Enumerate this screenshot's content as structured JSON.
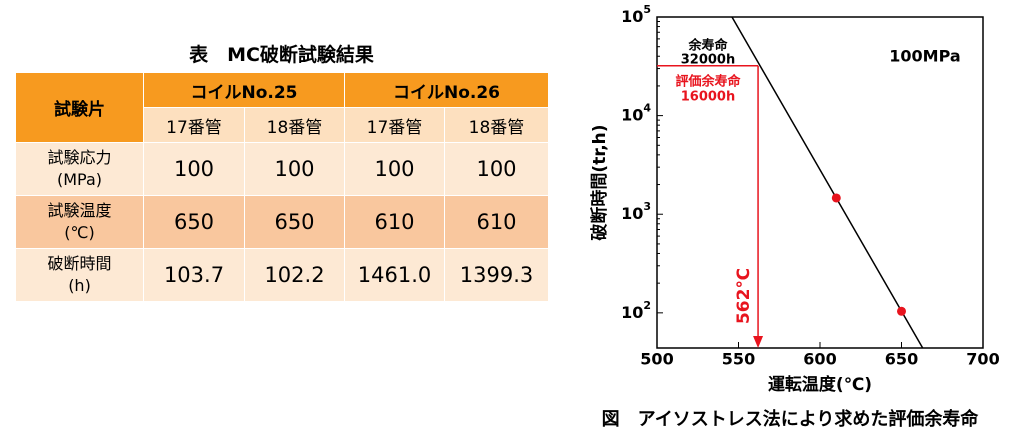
{
  "table": {
    "title": "表　MC破断試験結果",
    "header": [
      "試験片",
      "コイルNo.25",
      "コイルNo.26"
    ],
    "subheader": [
      "17番管",
      "18番管",
      "17番管",
      "18番管"
    ],
    "rows": [
      {
        "label": [
          "試験応力",
          "(MPa)"
        ],
        "cells": [
          "100",
          "100",
          "100",
          "100"
        ]
      },
      {
        "label": [
          "試験温度",
          "(℃)"
        ],
        "cells": [
          "650",
          "650",
          "610",
          "610"
        ]
      },
      {
        "label": [
          "破断時間",
          "(h)"
        ],
        "cells": [
          "103.7",
          "102.2",
          "1461.0",
          "1399.3"
        ]
      }
    ]
  },
  "chart_data": {
    "type": "line",
    "xlabel": "運転温度(℃)",
    "ylabel": "破断時間(tr,h)",
    "caption": "図　アイソストレス法により求めた評価余寿命",
    "xlim": [
      500,
      700
    ],
    "xticks": [
      500,
      550,
      600,
      650,
      700
    ],
    "ylim": [
      44,
      100000
    ],
    "log_y": true,
    "yticks": [
      {
        "value": 100,
        "label": "10^2"
      },
      {
        "value": 1000,
        "label": "10^3"
      },
      {
        "value": 10000,
        "label": "10^4"
      },
      {
        "value": 100000,
        "label": "10^5"
      }
    ],
    "x": [
      546,
      663
    ],
    "values": [
      100000,
      44
    ],
    "color": "#000000",
    "points": {
      "x": [
        610,
        650
      ],
      "values": [
        1461.0,
        103.7
      ],
      "color": "#e8141e"
    },
    "guide": {
      "x": 562,
      "y": 32000,
      "color": "#e8141e",
      "label": "562℃"
    },
    "annotations": [
      {
        "text": [
          "余寿命",
          "32000h"
        ],
        "color": "#000000"
      },
      {
        "text": [
          "評価余寿命",
          "16000h"
        ],
        "color": "#e8141e"
      }
    ],
    "condition": "100MPa"
  }
}
